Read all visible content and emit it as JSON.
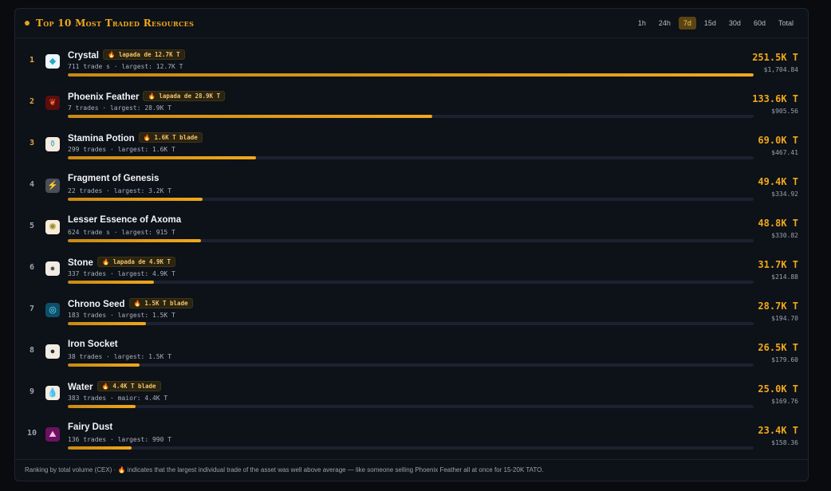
{
  "header": {
    "title": "Top 10 Most Traded Resources",
    "tabs": [
      {
        "label": "1h",
        "active": false
      },
      {
        "label": "24h",
        "active": false
      },
      {
        "label": "7d",
        "active": true
      },
      {
        "label": "15d",
        "active": false
      },
      {
        "label": "30d",
        "active": false
      },
      {
        "label": "60d",
        "active": false
      },
      {
        "label": "Total",
        "active": false
      }
    ]
  },
  "rows": [
    {
      "rank": "1",
      "name": "Crystal",
      "badge": "🔥 lapada de 12.7K T",
      "meta": "711 trade s · largest: 12.7K T",
      "volume": "251.5K T",
      "usd": "$1,704.84",
      "share": 1.0,
      "icon": "crystal-icon"
    },
    {
      "rank": "2",
      "name": "Phoenix Feather",
      "badge": "🔥 lapada de 28.9K T",
      "meta": "7 trades · largest: 28.9K T",
      "volume": "133.6K T",
      "usd": "$905.56",
      "share": 0.531,
      "icon": "feather-icon"
    },
    {
      "rank": "3",
      "name": "Stamina Potion",
      "badge": "🔥 1.6K T blade",
      "meta": "299 trades · largest: 1.6K T",
      "volume": "69.0K T",
      "usd": "$467.41",
      "share": 0.274,
      "icon": "potion-icon"
    },
    {
      "rank": "4",
      "name": "Fragment of Genesis",
      "badge": "",
      "meta": "22 trades · largest: 3.2K T",
      "volume": "49.4K T",
      "usd": "$334.92",
      "share": 0.196,
      "icon": "fragment-icon"
    },
    {
      "rank": "5",
      "name": "Lesser Essence of Axoma",
      "badge": "",
      "meta": "624 trade s · largest: 915 T",
      "volume": "48.8K T",
      "usd": "$330.82",
      "share": 0.194,
      "icon": "essence-icon"
    },
    {
      "rank": "6",
      "name": "Stone",
      "badge": "🔥 lapada de 4.9K T",
      "meta": "337 trades · largest: 4.9K T",
      "volume": "31.7K T",
      "usd": "$214.88",
      "share": 0.126,
      "icon": "stone-icon"
    },
    {
      "rank": "7",
      "name": "Chrono Seed",
      "badge": "🔥 1.5K T blade",
      "meta": "183 trades · largest: 1.5K T",
      "volume": "28.7K T",
      "usd": "$194.70",
      "share": 0.114,
      "icon": "seed-icon"
    },
    {
      "rank": "8",
      "name": "Iron Socket",
      "badge": "",
      "meta": "38 trades · largest: 1.5K T",
      "volume": "26.5K T",
      "usd": "$179.60",
      "share": 0.105,
      "icon": "socket-icon"
    },
    {
      "rank": "9",
      "name": "Water",
      "badge": "🔥 4.4K T blade",
      "meta": "383 trades · maior: 4.4K T",
      "volume": "25.0K T",
      "usd": "$169.76",
      "share": 0.099,
      "icon": "water-icon"
    },
    {
      "rank": "10",
      "name": "Fairy Dust",
      "badge": "",
      "meta": "136 trades · largest: 990 T",
      "volume": "23.4K T",
      "usd": "$158.36",
      "share": 0.093,
      "icon": "dust-icon"
    }
  ],
  "footer": {
    "text": "Ranking by total volume (CEX) · 🔥 indicates that the largest individual trade of the asset was well above average — like someone selling Phoenix Feather all at once for 15-20K TATO."
  },
  "colors": {
    "accent": "#f0a819",
    "background": "#0d1118",
    "track": "#1c2230"
  }
}
